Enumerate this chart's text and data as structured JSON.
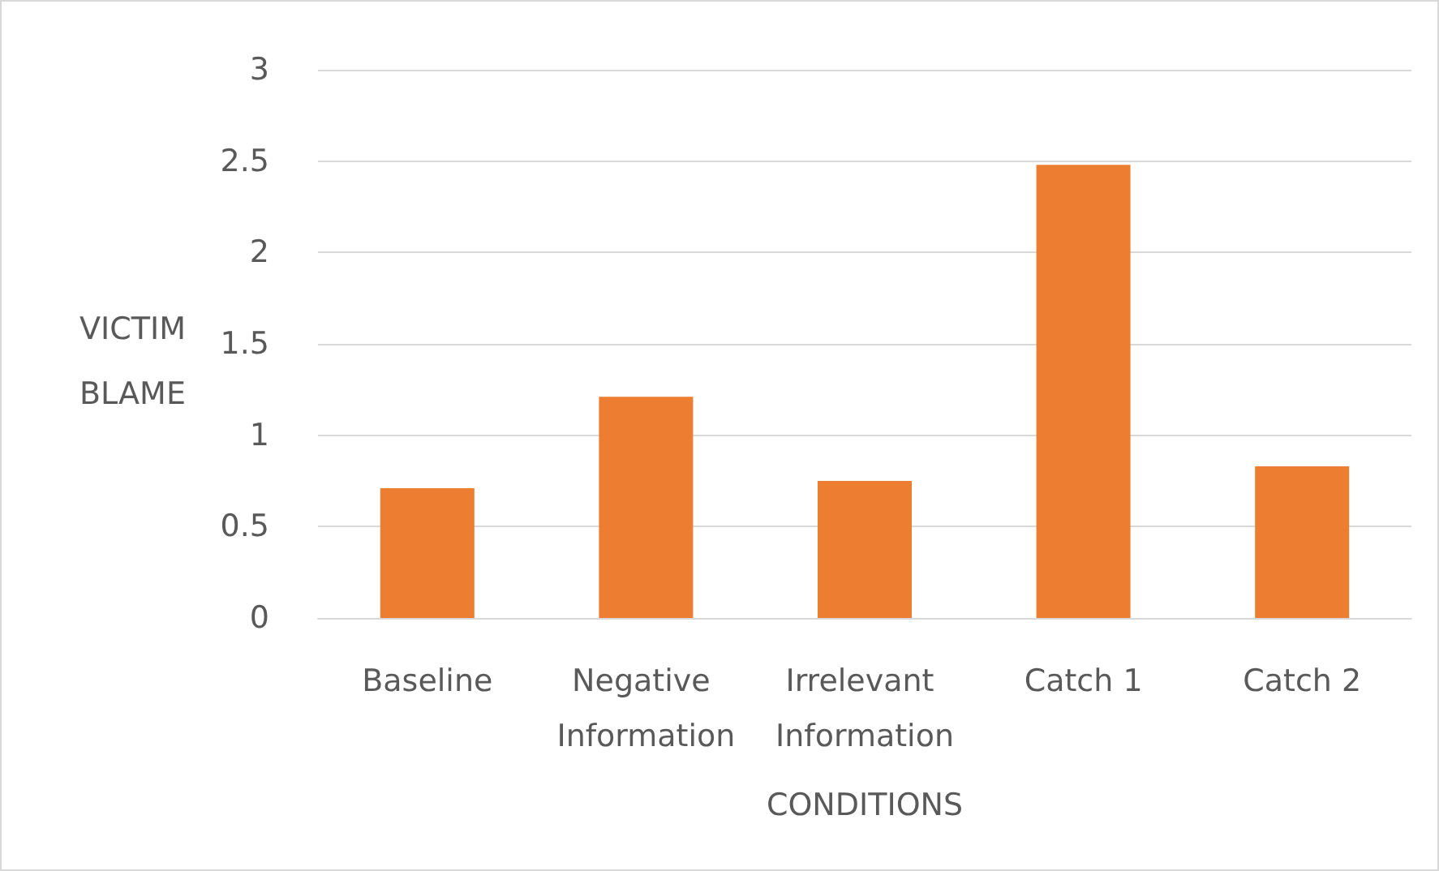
{
  "chart_data": {
    "type": "bar",
    "xlabel": "CONDITIONS",
    "ylabel": "VICTIM BLAME",
    "categories": [
      "Baseline",
      "Negative Information",
      "Irrelevant Information",
      "Catch 1",
      "Catch 2"
    ],
    "values": [
      0.71,
      1.21,
      0.75,
      2.48,
      0.83
    ],
    "color": "#ed7d31",
    "ylim": [
      0,
      3
    ],
    "yticks": [
      0,
      0.5,
      1,
      1.5,
      2,
      2.5,
      3
    ],
    "grid": "y"
  }
}
